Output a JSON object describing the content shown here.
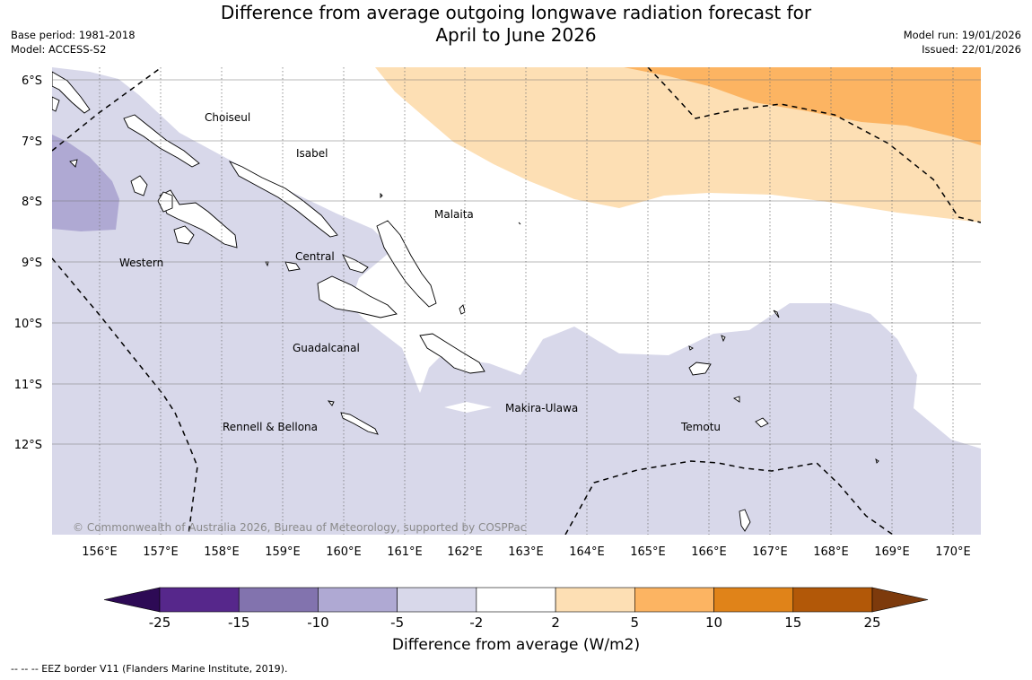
{
  "title": {
    "line1": "Difference from average outgoing longwave radiation forecast for",
    "line2": "April to June 2026"
  },
  "meta": {
    "base_period": "Base period: 1981-2018",
    "model": "Model: ACCESS-S2",
    "model_run": "Model run: 19/01/2026",
    "issued": "Issued: 22/01/2026"
  },
  "map": {
    "lon_ticks": [
      "156°E",
      "157°E",
      "158°E",
      "159°E",
      "160°E",
      "161°E",
      "162°E",
      "163°E",
      "164°E",
      "165°E",
      "166°E",
      "167°E",
      "168°E",
      "169°E",
      "170°E"
    ],
    "lat_ticks": [
      "6°S",
      "7°S",
      "8°S",
      "9°S",
      "10°S",
      "11°S",
      "12°S"
    ],
    "regions": [
      "Choiseul",
      "Isabel",
      "Malaita",
      "Western",
      "Central",
      "Guadalcanal",
      "Makira-Ulawa",
      "Rennell & Bellona",
      "Temotu"
    ],
    "copyright": "© Commonwealth of Australia 2026, Bureau of Meteorology, supported by COSPPac"
  },
  "colorbar": {
    "labels": [
      "-25",
      "-15",
      "-10",
      "-5",
      "-2",
      "2",
      "5",
      "10",
      "15",
      "25"
    ],
    "colors": [
      "#2d0a55",
      "#56278b",
      "#8273ae",
      "#afa9d3",
      "#d8d8ea",
      "#ffffff",
      "#fddfb4",
      "#fcb462",
      "#e08319",
      "#b25808",
      "#7d3a0c"
    ],
    "title": "Difference from average (W/m2)"
  },
  "footnote": "--  --  -- EEZ border V11 (Flanders Marine Institute, 2019)."
}
